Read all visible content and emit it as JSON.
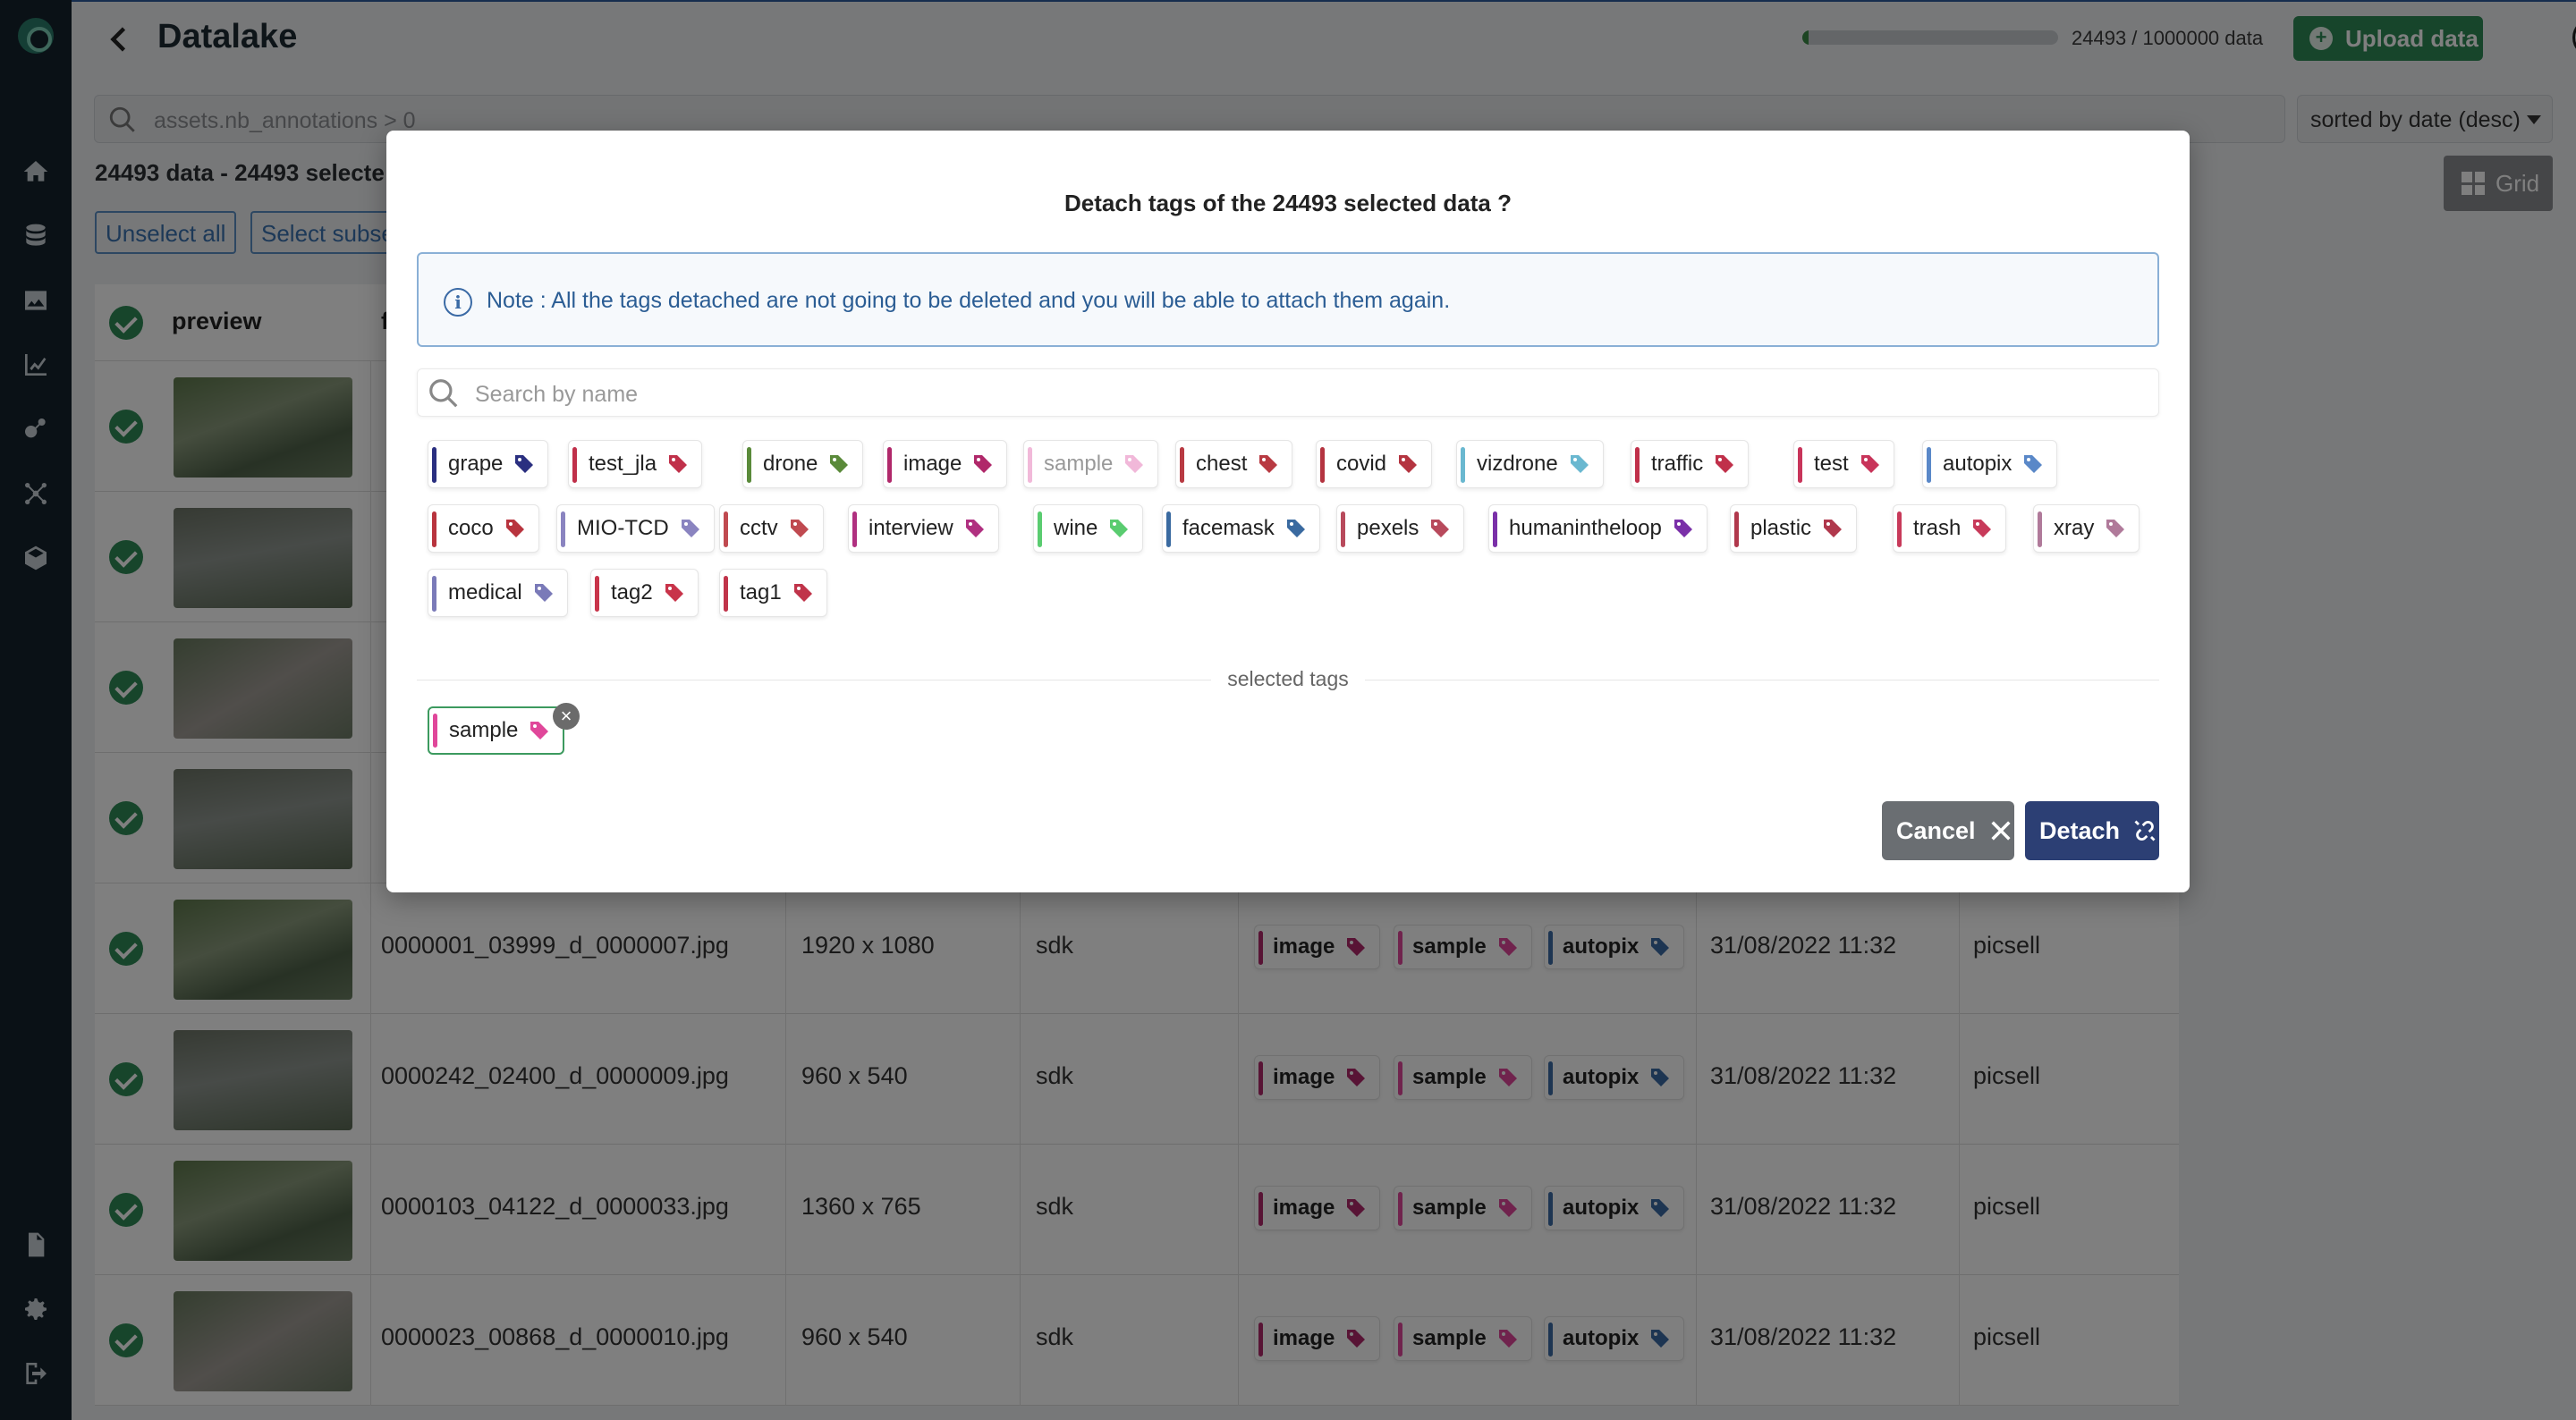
{
  "app": {
    "title": "Datalake",
    "quota_text": "24493 / 1000000 data",
    "quota_fraction": 0.024,
    "upload_label": "Upload data",
    "help_label": "?"
  },
  "sidebar": {
    "icons": [
      "home-icon",
      "database-icon",
      "image-icon",
      "chart-icon",
      "model-icon",
      "network-icon",
      "package-icon",
      "document-icon",
      "settings-icon",
      "logout-icon"
    ]
  },
  "toolbar": {
    "search_query": "assets.nb_annotations > 0",
    "sort_label": "sorted by date (desc)",
    "count_text": "24493 data - 24493 selecte",
    "grid_label": "Grid",
    "unselect_all": "Unselect all",
    "select_subset": "Select subse"
  },
  "table": {
    "headers": {
      "preview": "preview",
      "filename_partial": "f"
    },
    "rows": [
      {
        "file": "",
        "size": "",
        "source": "",
        "tags": [],
        "date": "",
        "owner": ""
      },
      {
        "file": "",
        "size": "",
        "source": "",
        "tags": [],
        "date": "",
        "owner": ""
      },
      {
        "file": "",
        "size": "",
        "source": "",
        "tags": [],
        "date": "",
        "owner": ""
      },
      {
        "file": "",
        "size": "",
        "source": "",
        "tags": [],
        "date": "",
        "owner": ""
      },
      {
        "file": "0000001_03999_d_0000007.jpg",
        "size": "1920 x 1080",
        "source": "sdk",
        "tags": [
          "image",
          "sample",
          "autopix"
        ],
        "date": "31/08/2022 11:32",
        "owner": "picsell"
      },
      {
        "file": "0000242_02400_d_0000009.jpg",
        "size": "960 x 540",
        "source": "sdk",
        "tags": [
          "image",
          "sample",
          "autopix"
        ],
        "date": "31/08/2022 11:32",
        "owner": "picsell"
      },
      {
        "file": "0000103_04122_d_0000033.jpg",
        "size": "1360 x 765",
        "source": "sdk",
        "tags": [
          "image",
          "sample",
          "autopix"
        ],
        "date": "31/08/2022 11:32",
        "owner": "picsell"
      },
      {
        "file": "0000023_00868_d_0000010.jpg",
        "size": "960 x 540",
        "source": "sdk",
        "tags": [
          "image",
          "sample",
          "autopix"
        ],
        "date": "31/08/2022 11:32",
        "owner": "picsell"
      }
    ]
  },
  "modal": {
    "title": "Detach tags of the 24493 selected data ?",
    "note": "Note : All the tags detached are not going to be deleted and you will be able to attach them again.",
    "search_placeholder": "Search by name",
    "tags": [
      {
        "label": "grape",
        "color": "#2a2f80"
      },
      {
        "label": "test_jla",
        "color": "#c0304a"
      },
      {
        "label": "drone",
        "color": "#5a8a3a"
      },
      {
        "label": "image",
        "color": "#b0286a"
      },
      {
        "label": "sample",
        "color": "#e88ac0",
        "selected": true
      },
      {
        "label": "chest",
        "color": "#b83a42"
      },
      {
        "label": "covid",
        "color": "#b43440"
      },
      {
        "label": "vizdrone",
        "color": "#6ab8d0"
      },
      {
        "label": "traffic",
        "color": "#c0304a"
      },
      {
        "label": "test",
        "color": "#c8345a"
      },
      {
        "label": "autopix",
        "color": "#5a88c8"
      },
      {
        "label": "coco",
        "color": "#b8343e"
      },
      {
        "label": "MIO-TCD",
        "color": "#8a84c0"
      },
      {
        "label": "cctv",
        "color": "#c04a50"
      },
      {
        "label": "interview",
        "color": "#b03080"
      },
      {
        "label": "wine",
        "color": "#5acc70"
      },
      {
        "label": "facemask",
        "color": "#3a6aa0"
      },
      {
        "label": "pexels",
        "color": "#b84a5c"
      },
      {
        "label": "humanintheloop",
        "color": "#7a30a8"
      },
      {
        "label": "plastic",
        "color": "#b0384c"
      },
      {
        "label": "trash",
        "color": "#c83a5a"
      },
      {
        "label": "xray",
        "color": "#b07a9a"
      },
      {
        "label": "medical",
        "color": "#7a7ab8"
      },
      {
        "label": "tag2",
        "color": "#c8344a"
      },
      {
        "label": "tag1",
        "color": "#c0344a"
      }
    ],
    "selected_label": "selected tags",
    "selected_tags": [
      {
        "label": "sample",
        "color": "#e0479a"
      }
    ],
    "remove_glyph": "×",
    "cancel_label": "Cancel",
    "detach_label": "Detach"
  },
  "colors": {
    "accent": "#2c3f74",
    "success": "#2e8b57",
    "sidebar": "#15232c"
  }
}
